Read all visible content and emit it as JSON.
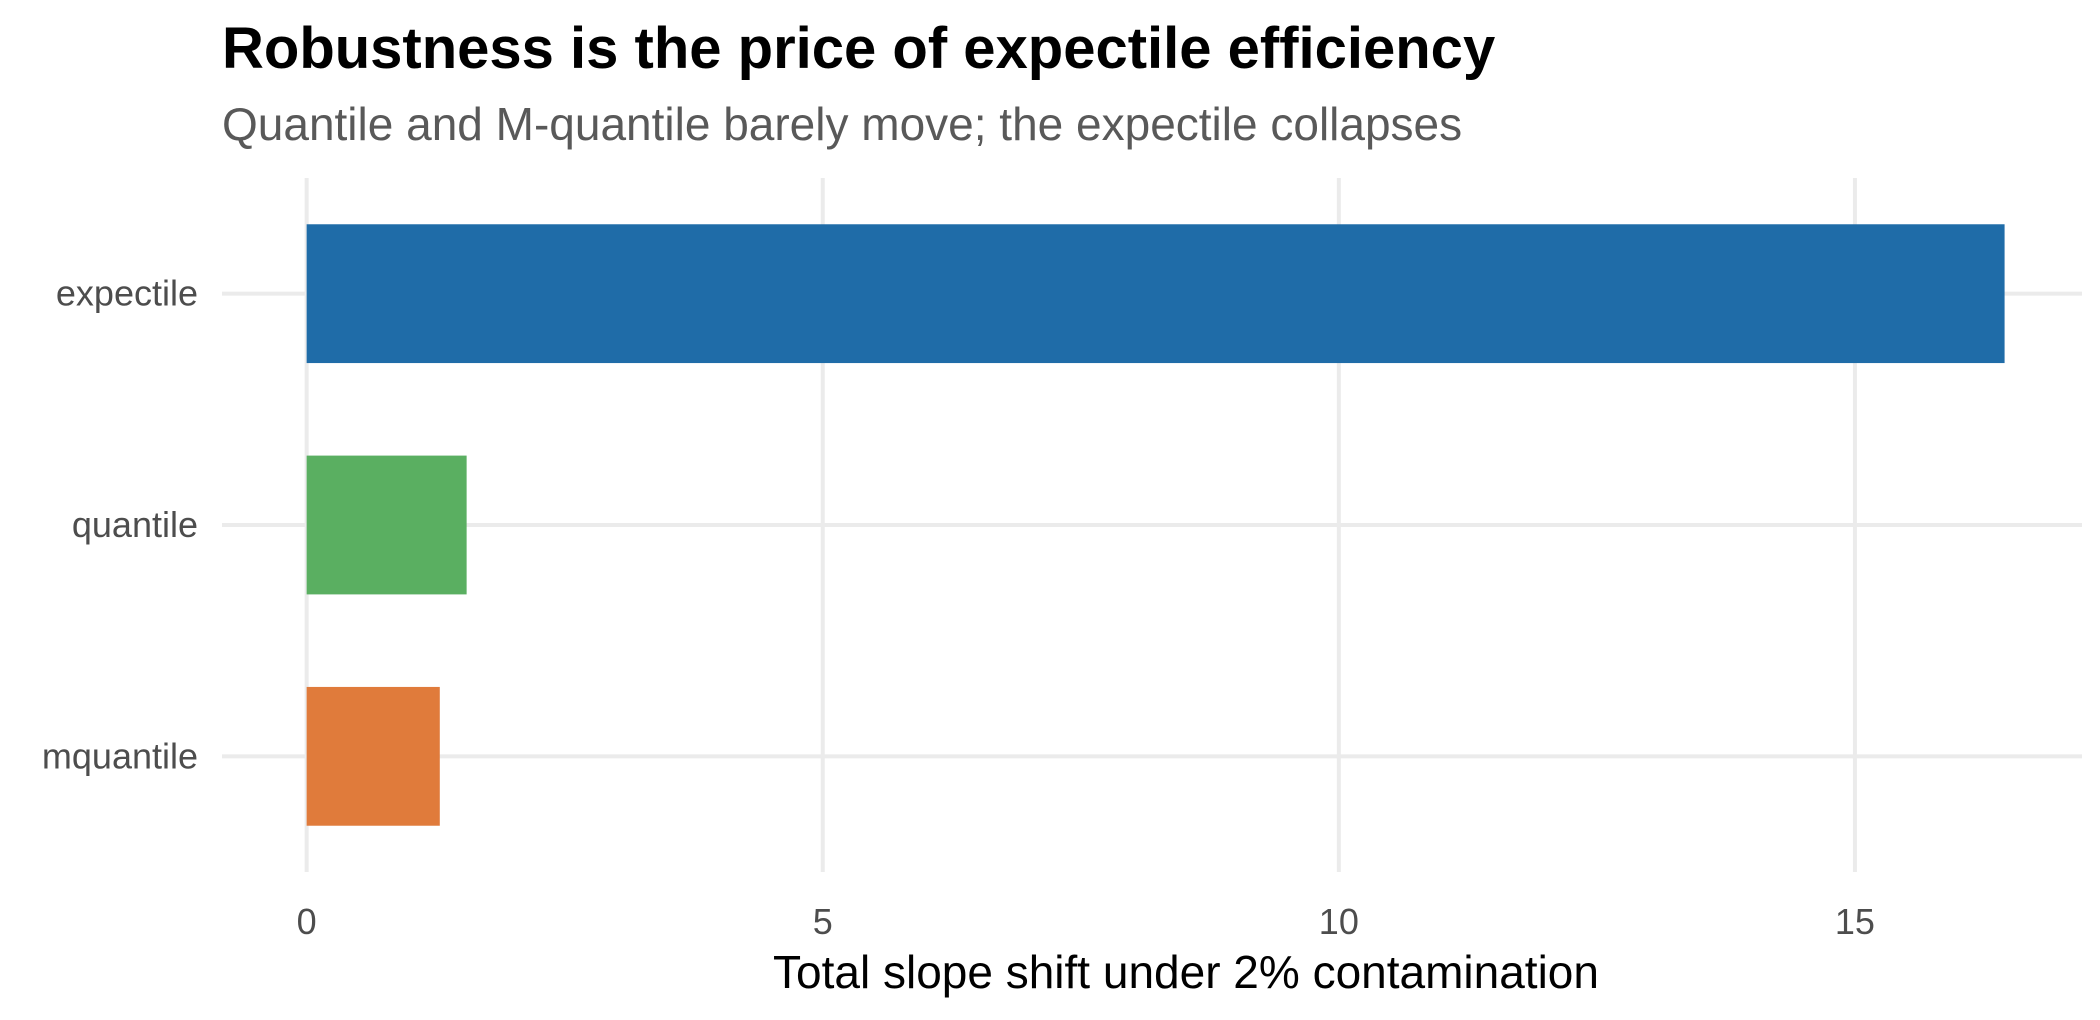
{
  "chart_data": {
    "type": "bar",
    "orientation": "horizontal",
    "title": "Robustness is the price of expectile efficiency",
    "subtitle": "Quantile and M-quantile barely move; the expectile collapses",
    "xlabel": "Total slope shift under 2% contamination",
    "ylabel": "",
    "categories": [
      "expectile",
      "quantile",
      "mquantile"
    ],
    "values": [
      16.45,
      1.55,
      1.29
    ],
    "colors": [
      "#1f6ca8",
      "#5aaf61",
      "#e07b3b"
    ],
    "xlim": [
      -0.82,
      17.2
    ],
    "xticks": [
      0,
      5,
      10,
      15
    ],
    "xtick_labels": [
      "0",
      "5",
      "10",
      "15"
    ],
    "grid": true,
    "legend": "none"
  }
}
